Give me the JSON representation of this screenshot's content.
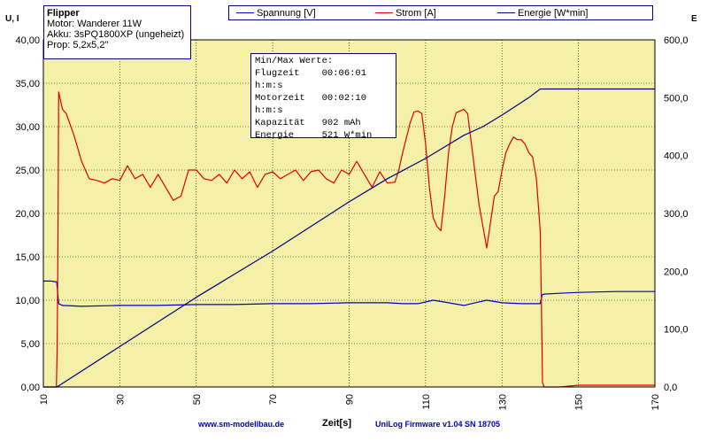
{
  "info": {
    "title": "Flipper",
    "motor": "Motor: Wanderer 11W",
    "akku": "Akku: 3sPQ1800XP (ungeheizt)",
    "prop": "Prop: 5,2x5,2\""
  },
  "stats": {
    "heading": "Min/Max Werte:",
    "rows": [
      "Flugzeit    00:06:01",
      "h:m:s",
      "Motorzeit   00:02:10",
      "h:m:s",
      "Kapazität   902 mAh",
      "Energie     521 W*min"
    ]
  },
  "footer": {
    "website": "www.sm-modellbau.de",
    "firmware": "UniLog Firmware v1.04 SN 18705"
  },
  "colors": {
    "plot_bg": "#f5f0a8",
    "spannung": "#0000c8",
    "strom": "#e00000",
    "energie": "#000080"
  },
  "chart_data": {
    "type": "line",
    "xlabel": "Zeit[s]",
    "ylabel_left": "U, I",
    "ylabel_right": "E",
    "xlim": [
      10,
      170
    ],
    "ylim_left": [
      0,
      40
    ],
    "ylim_right": [
      0,
      600
    ],
    "x_ticks": [
      "10",
      "30",
      "50",
      "70",
      "90",
      "110",
      "130",
      "150",
      "170"
    ],
    "y_ticks_left": [
      "0,00",
      "5,00",
      "10,00",
      "15,00",
      "20,00",
      "25,00",
      "30,00",
      "35,00",
      "40,00"
    ],
    "y_ticks_right": [
      "0,0",
      "100,0",
      "200,0",
      "300,0",
      "400,0",
      "500,0",
      "600,0"
    ],
    "grid": true,
    "series": [
      {
        "name": "Spannung [V]",
        "axis": "left",
        "x": [
          10,
          12,
          13.5,
          14,
          15,
          20,
          30,
          40,
          50,
          60,
          70,
          80,
          90,
          95,
          100,
          104,
          108,
          110,
          112,
          116,
          120,
          123,
          126,
          130,
          135,
          140,
          140.5,
          141,
          145,
          150,
          160,
          170
        ],
        "y": [
          12.2,
          12.2,
          12.1,
          9.6,
          9.4,
          9.3,
          9.4,
          9.4,
          9.5,
          9.5,
          9.6,
          9.6,
          9.7,
          9.7,
          9.7,
          9.6,
          9.6,
          9.8,
          10.0,
          9.7,
          9.4,
          9.7,
          10.0,
          9.7,
          9.6,
          9.6,
          10.6,
          10.7,
          10.8,
          10.9,
          11.0,
          11.0
        ]
      },
      {
        "name": "Strom [A]",
        "axis": "left",
        "x": [
          10,
          13.4,
          13.6,
          13.8,
          14,
          14.5,
          15,
          16,
          18,
          20,
          22,
          24,
          26,
          28,
          30,
          32,
          34,
          36,
          38,
          40,
          42,
          44,
          46,
          48,
          50,
          52,
          54,
          56,
          58,
          60,
          62,
          64,
          66,
          68,
          70,
          72,
          74,
          76,
          78,
          80,
          82,
          84,
          86,
          88,
          90,
          92,
          94,
          96,
          98,
          100,
          102,
          103,
          104,
          106,
          107,
          108,
          109,
          110,
          111,
          112,
          113,
          114,
          115,
          116,
          117,
          118,
          120,
          121,
          122,
          123,
          124,
          125,
          126,
          127,
          128,
          129,
          130,
          131,
          132,
          133,
          134,
          135,
          136,
          137,
          138,
          139,
          140,
          140.3,
          140.6,
          141,
          145,
          150,
          160,
          170
        ],
        "y": [
          0,
          0,
          4,
          15,
          34,
          33,
          32,
          31.5,
          29,
          26,
          24,
          23.8,
          23.5,
          24,
          23.8,
          25.5,
          24,
          24.5,
          23,
          24.5,
          23,
          21.5,
          22,
          25,
          25,
          24,
          23.8,
          24.5,
          23.5,
          25,
          24,
          24.8,
          23,
          24.5,
          24.8,
          24,
          24.5,
          25,
          23.8,
          24.8,
          25,
          24,
          23.5,
          25,
          24.5,
          26,
          24.5,
          23,
          24.8,
          23.5,
          23.6,
          25,
          27,
          30.5,
          31.7,
          31.8,
          31.5,
          28,
          23,
          19.5,
          18.5,
          18,
          22,
          27,
          30,
          31.6,
          32,
          31.5,
          28,
          24.5,
          21,
          18.5,
          16,
          19,
          22,
          22.5,
          25,
          27,
          28,
          28.8,
          28.5,
          28.5,
          28,
          27,
          26.5,
          24,
          18,
          10,
          0.5,
          0,
          0,
          0.2,
          0.2,
          0.2
        ]
      },
      {
        "name": "Energie [W*min]",
        "axis": "right",
        "x": [
          10,
          13.5,
          14,
          50,
          70,
          90,
          100,
          110,
          120,
          125,
          130,
          137,
          140,
          150,
          160,
          170
        ],
        "y": [
          0,
          0,
          2,
          155,
          235,
          320,
          360,
          395,
          435,
          450,
          470,
          500,
          515,
          515,
          515,
          515
        ]
      }
    ]
  }
}
